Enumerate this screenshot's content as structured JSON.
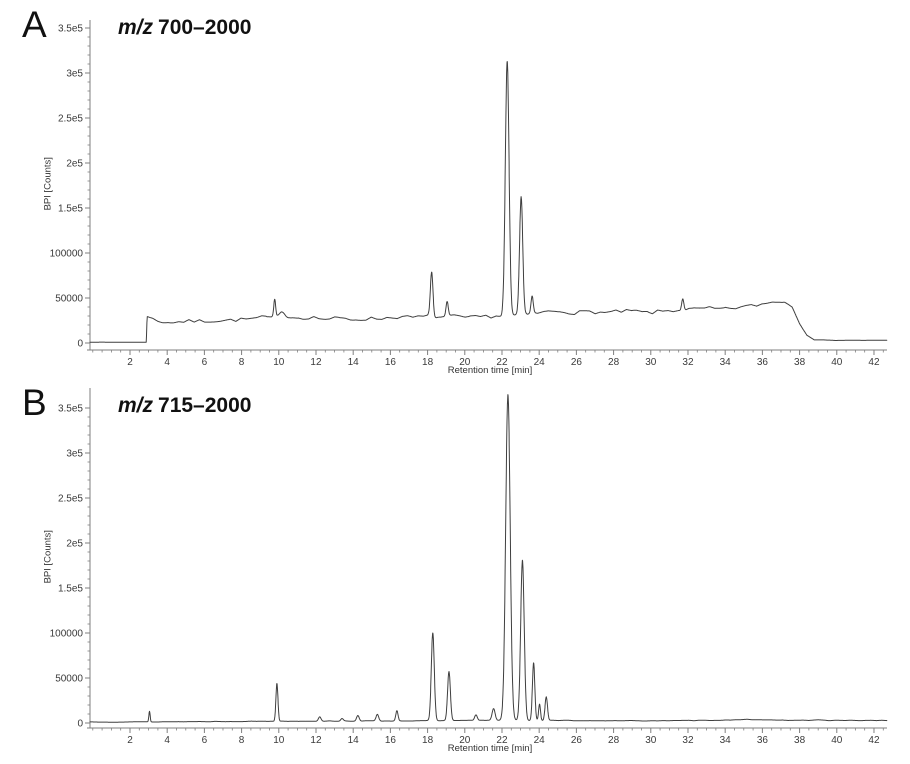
{
  "figure": {
    "colors": {
      "background": "#ffffff",
      "trace": "#3f3f3f",
      "axis": "#7f7f7f",
      "tick_text": "#3a3a3a"
    },
    "panels": [
      {
        "panel_label": "A",
        "title_italic": "m/z",
        "title_range": "700–2000",
        "y_axis_label": "BPI [Counts]",
        "x_axis_label": "Retention time [min]"
      },
      {
        "panel_label": "B",
        "title_italic": "m/z",
        "title_range": "715–2000",
        "y_axis_label": "BPI [Counts]",
        "x_axis_label": "Retention time [min]"
      }
    ]
  },
  "chart_data": [
    {
      "type": "line",
      "title": "m/z 700–2000",
      "xlabel": "Retention time [min]",
      "ylabel": "BPI [Counts]",
      "xlim": [
        -0.15,
        42.7
      ],
      "ylim": [
        -8000,
        360000
      ],
      "x_ticks": [
        2,
        4,
        6,
        8,
        10,
        12,
        14,
        16,
        18,
        20,
        22,
        24,
        26,
        28,
        30,
        32,
        34,
        36,
        38,
        40,
        42
      ],
      "x_minor_tick_step": 0.5,
      "y_ticks": [
        {
          "value": 0,
          "label": "0"
        },
        {
          "value": 50000,
          "label": "50000"
        },
        {
          "value": 100000,
          "label": "100000"
        },
        {
          "value": 150000,
          "label": "1.5e5"
        },
        {
          "value": 200000,
          "label": "2e5"
        },
        {
          "value": 250000,
          "label": "2.5e5"
        },
        {
          "value": 300000,
          "label": "3e5"
        },
        {
          "value": 350000,
          "label": "3.5e5"
        }
      ],
      "y_minor_tick_step": 10000,
      "baseline_points": [
        [
          -0.15,
          900
        ],
        [
          2.88,
          900
        ],
        [
          2.92,
          29500
        ],
        [
          3.1,
          27500
        ],
        [
          3.5,
          24000
        ],
        [
          4.2,
          23000
        ],
        [
          5,
          24000
        ],
        [
          6,
          24500
        ],
        [
          7,
          25000
        ],
        [
          8,
          26000
        ],
        [
          8.8,
          27500
        ],
        [
          9.3,
          29000
        ],
        [
          9.6,
          27500
        ],
        [
          10.35,
          29500
        ],
        [
          11,
          28000
        ],
        [
          11.8,
          28500
        ],
        [
          12.5,
          26500
        ],
        [
          13.2,
          27500
        ],
        [
          14,
          26000
        ],
        [
          14.8,
          27000
        ],
        [
          15.6,
          27500
        ],
        [
          16.4,
          29000
        ],
        [
          17.2,
          28500
        ],
        [
          18,
          29500
        ],
        [
          18.7,
          28500
        ],
        [
          19.4,
          29500
        ],
        [
          20.2,
          28000
        ],
        [
          21,
          29500
        ],
        [
          21.8,
          30000
        ],
        [
          22.7,
          30500
        ],
        [
          23.5,
          32000
        ],
        [
          24.3,
          34500
        ],
        [
          25.1,
          35500
        ],
        [
          25.9,
          33500
        ],
        [
          26.7,
          35000
        ],
        [
          27.5,
          33500
        ],
        [
          28.3,
          35000
        ],
        [
          29.1,
          35500
        ],
        [
          29.9,
          33500
        ],
        [
          30.7,
          35500
        ],
        [
          31.5,
          36500
        ],
        [
          32.3,
          37500
        ],
        [
          33.1,
          38500
        ],
        [
          33.9,
          37500
        ],
        [
          34.7,
          39500
        ],
        [
          35.5,
          41500
        ],
        [
          36.2,
          44000
        ],
        [
          36.8,
          46500
        ],
        [
          37.2,
          46000
        ],
        [
          37.6,
          40000
        ],
        [
          38,
          22000
        ],
        [
          38.4,
          9000
        ],
        [
          38.8,
          4000
        ],
        [
          39.5,
          3000
        ],
        [
          42.7,
          3000
        ]
      ],
      "peaks": [
        {
          "rt": 9.78,
          "intensity": 47000,
          "sigma": 0.05
        },
        {
          "rt": 10.18,
          "intensity": 36000,
          "sigma": 0.13
        },
        {
          "rt": 18.22,
          "intensity": 79000,
          "sigma": 0.07
        },
        {
          "rt": 19.05,
          "intensity": 45000,
          "sigma": 0.06
        },
        {
          "rt": 22.28,
          "intensity": 312000,
          "sigma": 0.1
        },
        {
          "rt": 23.03,
          "intensity": 161000,
          "sigma": 0.085
        },
        {
          "rt": 23.62,
          "intensity": 51000,
          "sigma": 0.06
        },
        {
          "rt": 31.72,
          "intensity": 50000,
          "sigma": 0.06
        }
      ],
      "noise": [
        {
          "from": -0.15,
          "to": 2.88,
          "amp": 90
        },
        {
          "from": 2.95,
          "to": 37.5,
          "amp": 2000
        },
        {
          "from": 37.5,
          "to": 38.8,
          "amp": 700
        },
        {
          "from": 38.8,
          "to": 42.7,
          "amp": 220
        }
      ],
      "seed": 7
    },
    {
      "type": "line",
      "title": "m/z 715–2000",
      "xlabel": "Retention time [min]",
      "ylabel": "BPI [Counts]",
      "xlim": [
        -0.15,
        42.7
      ],
      "ylim": [
        -8000,
        372000
      ],
      "x_ticks": [
        2,
        4,
        6,
        8,
        10,
        12,
        14,
        16,
        18,
        20,
        22,
        24,
        26,
        28,
        30,
        32,
        34,
        36,
        38,
        40,
        42
      ],
      "x_minor_tick_step": 0.5,
      "y_ticks": [
        {
          "value": 0,
          "label": "0"
        },
        {
          "value": 50000,
          "label": "50000"
        },
        {
          "value": 100000,
          "label": "100000"
        },
        {
          "value": 150000,
          "label": "1.5e5"
        },
        {
          "value": 200000,
          "label": "2e5"
        },
        {
          "value": 250000,
          "label": "2.5e5"
        },
        {
          "value": 300000,
          "label": "3e5"
        },
        {
          "value": 350000,
          "label": "3.5e5"
        }
      ],
      "y_minor_tick_step": 10000,
      "baseline_points": [
        [
          -0.15,
          1200
        ],
        [
          3,
          1200
        ],
        [
          5,
          1500
        ],
        [
          8,
          1800
        ],
        [
          10,
          2000
        ],
        [
          14,
          2200
        ],
        [
          18,
          2500
        ],
        [
          22,
          3000
        ],
        [
          25,
          2800
        ],
        [
          28,
          2500
        ],
        [
          31,
          2500
        ],
        [
          34,
          3200
        ],
        [
          35.2,
          4200
        ],
        [
          36,
          3200
        ],
        [
          38.5,
          3000
        ],
        [
          39,
          3500
        ],
        [
          39.5,
          2800
        ],
        [
          42.7,
          2800
        ]
      ],
      "peaks": [
        {
          "rt": 3.05,
          "intensity": 13000,
          "sigma": 0.035
        },
        {
          "rt": 9.9,
          "intensity": 44000,
          "sigma": 0.055
        },
        {
          "rt": 12.2,
          "intensity": 7000,
          "sigma": 0.07
        },
        {
          "rt": 13.4,
          "intensity": 5000,
          "sigma": 0.07
        },
        {
          "rt": 14.25,
          "intensity": 8500,
          "sigma": 0.07
        },
        {
          "rt": 15.3,
          "intensity": 9500,
          "sigma": 0.07
        },
        {
          "rt": 16.35,
          "intensity": 13500,
          "sigma": 0.06
        },
        {
          "rt": 18.28,
          "intensity": 100000,
          "sigma": 0.08
        },
        {
          "rt": 19.15,
          "intensity": 57000,
          "sigma": 0.075
        },
        {
          "rt": 20.6,
          "intensity": 9000,
          "sigma": 0.07
        },
        {
          "rt": 21.55,
          "intensity": 16000,
          "sigma": 0.08
        },
        {
          "rt": 22.32,
          "intensity": 365000,
          "sigma": 0.12
        },
        {
          "rt": 23.1,
          "intensity": 181000,
          "sigma": 0.095
        },
        {
          "rt": 23.7,
          "intensity": 67000,
          "sigma": 0.065
        },
        {
          "rt": 24.02,
          "intensity": 21000,
          "sigma": 0.05
        },
        {
          "rt": 24.38,
          "intensity": 29000,
          "sigma": 0.065
        }
      ],
      "noise": [
        {
          "from": -0.15,
          "to": 42.7,
          "amp": 280
        }
      ],
      "seed": 13
    }
  ]
}
